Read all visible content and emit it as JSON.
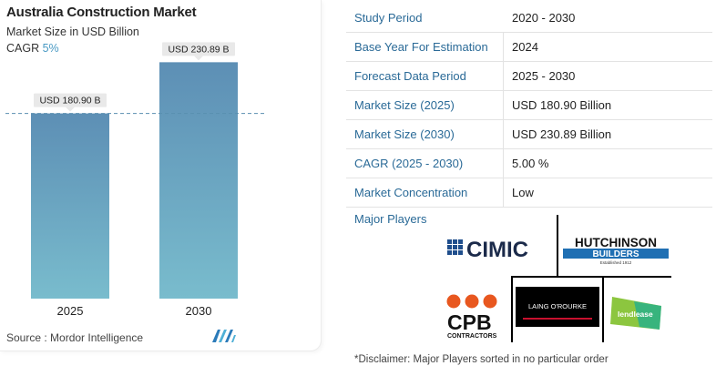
{
  "chart_data": {
    "type": "bar",
    "title": "Australia Construction Market",
    "subtitle": "Market Size in USD Billion",
    "cagr_label": "CAGR",
    "cagr_value": "5%",
    "categories": [
      "2025",
      "2030"
    ],
    "values": [
      180.9,
      230.89
    ],
    "value_labels": [
      "USD 180.90 B",
      "USD 230.89 B"
    ],
    "reference_line": 180.9,
    "ylim": [
      0,
      265
    ],
    "bar_color": "#6aa8c6",
    "bar_color_top": "#5d8fb5"
  },
  "source": "Source : Mordor Intelligence",
  "table": [
    {
      "label": "Study Period",
      "value": "2020 - 2030"
    },
    {
      "label": "Base Year For Estimation",
      "value": "2024"
    },
    {
      "label": "Forecast Data Period",
      "value": "2025 - 2030"
    },
    {
      "label": "Market Size (2025)",
      "value": "USD 180.90 Billion"
    },
    {
      "label": "Market Size (2030)",
      "value": "USD 230.89 Billion"
    },
    {
      "label": "CAGR (2025 - 2030)",
      "value": "5.00 %"
    },
    {
      "label": "Market Concentration",
      "value": "Low"
    }
  ],
  "major_players_title": "Major Players",
  "players": {
    "cimic": "CIMIC",
    "hutchinson_line1": "HUTCHINSON",
    "hutchinson_line2": "BUILDERS",
    "hutchinson_line3": "Established 1912",
    "cpb_main": "CPB",
    "cpb_sub": "CONTRACTORS",
    "laing": "LAING O'ROURKE",
    "lendlease": "lendlease"
  },
  "disclaimer": "*Disclaimer: Major Players sorted in no particular order",
  "colors": {
    "accent": "#2a6a97",
    "cpb_orange": "#e8571f",
    "hutchinson_blue": "#1f6fb3",
    "lendlease_green": "#8cc63f"
  }
}
